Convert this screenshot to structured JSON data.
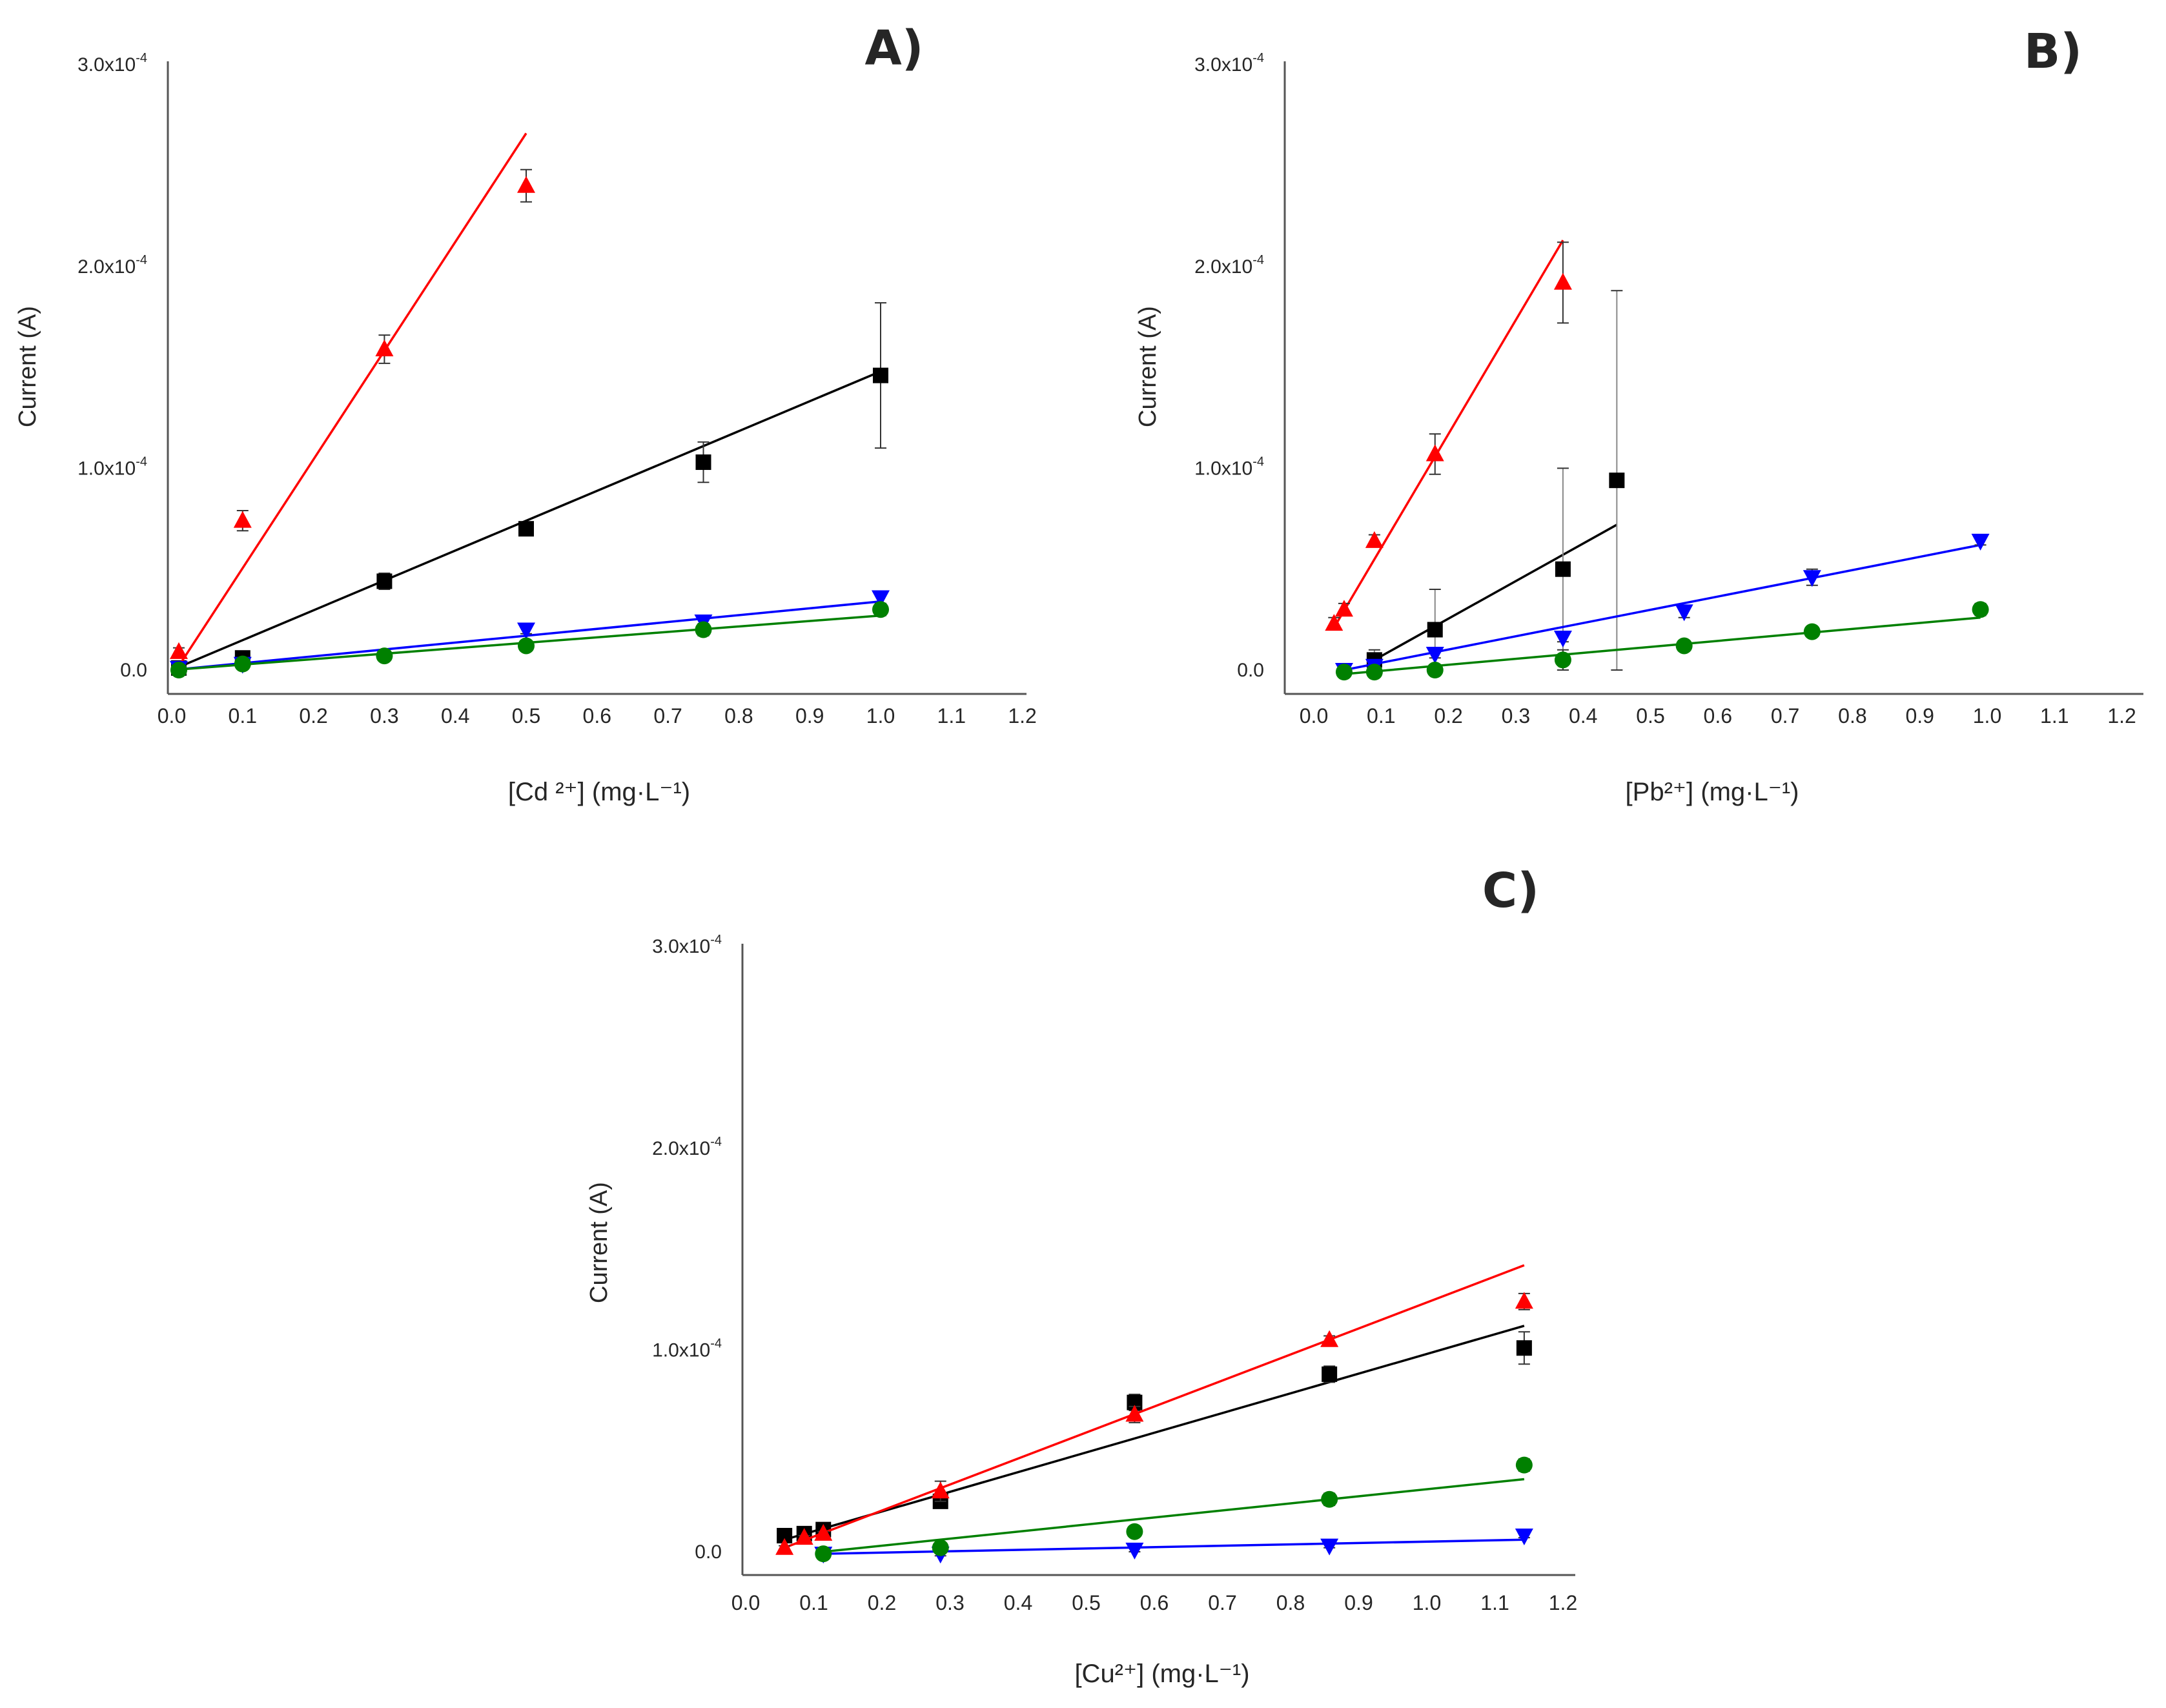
{
  "chart_data": [
    {
      "type": "scatter",
      "panel": "A)",
      "xlabel": "[Cd ²⁺] (mg·L⁻¹)",
      "ylabel": "Current (A)",
      "xlim": [
        0,
        1.2
      ],
      "ylim": [
        0,
        0.0003
      ],
      "x_ticks": [
        "0.0",
        "0.1",
        "0.2",
        "0.3",
        "0.4",
        "0.5",
        "0.6",
        "0.7",
        "0.8",
        "0.9",
        "1.0",
        "1.1",
        "1.2"
      ],
      "y_ticks": [
        {
          "value": 0,
          "mantissa": "0.0",
          "exp": ""
        },
        {
          "value": 0.0001,
          "mantissa": "1.0x10",
          "exp": "-4"
        },
        {
          "value": 0.0002,
          "mantissa": "2.0x10",
          "exp": "-4"
        },
        {
          "value": 0.0003,
          "mantissa": "3.0x10",
          "exp": "-4"
        }
      ],
      "series": [
        {
          "name": "black",
          "color": "#000000",
          "marker": "square",
          "x": [
            0.01,
            0.1,
            0.3,
            0.5,
            0.75,
            1.0
          ],
          "y": [
            1e-06,
            6e-06,
            4.4e-05,
            7e-05,
            0.000103,
            0.000146
          ],
          "err": [
            1e-06,
            2e-06,
            4e-06,
            2e-06,
            1e-05,
            3.6e-05
          ],
          "fit": [
            [
              0.0,
              0.0
            ],
            [
              1.0,
              0.000148
            ]
          ]
        },
        {
          "name": "red",
          "color": "#ff0000",
          "marker": "triangle-up",
          "x": [
            0.01,
            0.1,
            0.3,
            0.5
          ],
          "y": [
            9e-06,
            7.4e-05,
            0.000159,
            0.00024
          ],
          "err": [
            2e-06,
            5e-06,
            7e-06,
            8e-06
          ],
          "fit": [
            [
              0.01,
              2e-06
            ],
            [
              0.5,
              0.000266
            ]
          ]
        },
        {
          "name": "blue",
          "color": "#0000ff",
          "marker": "triangle-down",
          "x": [
            0.01,
            0.1,
            0.5,
            0.75,
            1.0
          ],
          "y": [
            1e-06,
            3e-06,
            2e-05,
            2.4e-05,
            3.6e-05
          ],
          "err": [
            1e-06,
            1e-06,
            2e-06,
            2e-06,
            3e-06
          ],
          "fit": [
            [
              0.0,
              0.0
            ],
            [
              1.0,
              3.4e-05
            ]
          ]
        },
        {
          "name": "green",
          "color": "#008000",
          "marker": "circle",
          "x": [
            0.01,
            0.1,
            0.3,
            0.5,
            0.75,
            1.0
          ],
          "y": [
            0.0,
            3e-06,
            7e-06,
            1.2e-05,
            2e-05,
            3e-05
          ],
          "err": [
            1e-06,
            1e-06,
            1e-06,
            2e-06,
            3e-06,
            3e-06
          ],
          "fit": [
            [
              0.0,
              0.0
            ],
            [
              1.0,
              2.7e-05
            ]
          ]
        }
      ]
    },
    {
      "type": "scatter",
      "panel": "B)",
      "xlabel": "[Pb²⁺] (mg·L⁻¹)",
      "ylabel": "Current (A)",
      "xlim": [
        0,
        1.2
      ],
      "ylim": [
        0,
        0.0003
      ],
      "x_ticks": [
        "0.0",
        "0.1",
        "0.2",
        "0.3",
        "0.4",
        "0.5",
        "0.6",
        "0.7",
        "0.8",
        "0.9",
        "1.0",
        "1.1",
        "1.2"
      ],
      "y_ticks": [
        {
          "value": 0,
          "mantissa": "0.0",
          "exp": ""
        },
        {
          "value": 0.0001,
          "mantissa": "1.0x10",
          "exp": "-4"
        },
        {
          "value": 0.0002,
          "mantissa": "2.0x10",
          "exp": "-4"
        },
        {
          "value": 0.0003,
          "mantissa": "3.0x10",
          "exp": "-4"
        }
      ],
      "series": [
        {
          "name": "black",
          "color": "#000000",
          "marker": "square",
          "x": [
            0.09,
            0.18,
            0.37,
            0.45
          ],
          "y": [
            5e-06,
            2e-05,
            5e-05,
            9.4e-05
          ],
          "err": [
            5e-06,
            2e-05,
            5e-05,
            9.4e-05
          ],
          "fit": [
            [
              0.09,
              5e-06
            ],
            [
              0.45,
              7.2e-05
            ]
          ]
        },
        {
          "name": "red",
          "color": "#ff0000",
          "marker": "triangle-up",
          "x": [
            0.03,
            0.045,
            0.09,
            0.18,
            0.37
          ],
          "y": [
            2.3e-05,
            3e-05,
            6.4e-05,
            0.000107,
            0.000192
          ],
          "err": [
            3e-06,
            3e-06,
            3e-06,
            1e-05,
            2e-05
          ],
          "fit": [
            [
              0.03,
              2.1e-05
            ],
            [
              0.37,
              0.000213
            ]
          ]
        },
        {
          "name": "blue",
          "color": "#0000ff",
          "marker": "triangle-down",
          "x": [
            0.045,
            0.09,
            0.18,
            0.37,
            0.55,
            0.74,
            0.99
          ],
          "y": [
            0.0,
            2e-06,
            8e-06,
            1.6e-05,
            2.9e-05,
            4.6e-05,
            6.4e-05
          ],
          "err": [
            1e-06,
            1e-06,
            2e-06,
            2e-06,
            3e-06,
            4e-06,
            2e-06
          ],
          "fit": [
            [
              0.045,
              0.0
            ],
            [
              0.99,
              6.2e-05
            ]
          ]
        },
        {
          "name": "green",
          "color": "#008000",
          "marker": "circle",
          "x": [
            0.045,
            0.09,
            0.18,
            0.37,
            0.55,
            0.74,
            0.99
          ],
          "y": [
            -1e-06,
            -1e-06,
            0.0,
            5e-06,
            1.2e-05,
            1.9e-05,
            3e-05
          ],
          "err": [
            1e-06,
            1e-06,
            1e-06,
            5e-06,
            2e-06,
            2e-06,
            3e-06
          ],
          "fit": [
            [
              0.045,
              -2e-06
            ],
            [
              0.99,
              2.6e-05
            ]
          ]
        }
      ]
    },
    {
      "type": "scatter",
      "panel": "C)",
      "xlabel": "[Cu²⁺] (mg·L⁻¹)",
      "ylabel": "Current (A)",
      "xlim": [
        0,
        1.2
      ],
      "ylim": [
        0,
        0.0003
      ],
      "x_ticks": [
        "0.0",
        "0.1",
        "0.2",
        "0.3",
        "0.4",
        "0.5",
        "0.6",
        "0.7",
        "0.8",
        "0.9",
        "1.0",
        "1.1",
        "1.2"
      ],
      "y_ticks": [
        {
          "value": 0,
          "mantissa": "0.0",
          "exp": ""
        },
        {
          "value": 0.0001,
          "mantissa": "1.0x10",
          "exp": "-4"
        },
        {
          "value": 0.0002,
          "mantissa": "2.0x10",
          "exp": "-4"
        },
        {
          "value": 0.0003,
          "mantissa": "3.0x10",
          "exp": "-4"
        }
      ],
      "series": [
        {
          "name": "black",
          "color": "#000000",
          "marker": "square",
          "x": [
            0.057,
            0.086,
            0.114,
            0.286,
            0.571,
            0.857,
            1.143
          ],
          "y": [
            8e-06,
            9e-06,
            1.1e-05,
            2.5e-05,
            7.4e-05,
            8.8e-05,
            0.000101
          ],
          "err": [
            1e-06,
            1e-06,
            1e-06,
            3e-06,
            4e-06,
            4e-06,
            8e-06
          ],
          "fit": [
            [
              0.057,
              6e-06
            ],
            [
              1.143,
              0.000112
            ]
          ]
        },
        {
          "name": "red",
          "color": "#ff0000",
          "marker": "triangle-up",
          "x": [
            0.057,
            0.086,
            0.114,
            0.286,
            0.571,
            0.857,
            1.143
          ],
          "y": [
            2e-06,
            7e-06,
            9e-06,
            3e-05,
            6.8e-05,
            0.000105,
            0.000124
          ],
          "err": [
            1e-06,
            1e-06,
            1e-06,
            5e-06,
            4e-06,
            2e-06,
            4e-06
          ],
          "fit": [
            [
              0.057,
              2e-06
            ],
            [
              1.143,
              0.000142
            ]
          ]
        },
        {
          "name": "blue",
          "color": "#0000ff",
          "marker": "triangle-down",
          "x": [
            0.114,
            0.286,
            0.571,
            0.857,
            1.143
          ],
          "y": [
            -1e-06,
            -1e-06,
            1e-06,
            3e-06,
            8e-06
          ],
          "err": [
            1e-06,
            1e-06,
            1e-06,
            1e-06,
            1e-06
          ],
          "fit": [
            [
              0.114,
              -1e-06
            ],
            [
              1.143,
              6e-06
            ]
          ]
        },
        {
          "name": "green",
          "color": "#008000",
          "marker": "circle",
          "x": [
            0.114,
            0.286,
            0.571,
            0.857,
            1.143
          ],
          "y": [
            -1e-06,
            2e-06,
            1e-05,
            2.6e-05,
            4.3e-05
          ],
          "err": [
            1e-06,
            1e-06,
            2e-06,
            3e-06,
            3e-06
          ],
          "fit": [
            [
              0.114,
              0.0
            ],
            [
              1.143,
              3.6e-05
            ]
          ]
        }
      ]
    }
  ]
}
